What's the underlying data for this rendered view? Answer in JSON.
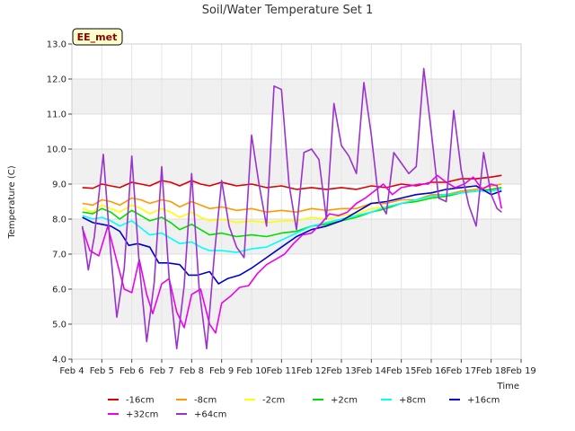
{
  "chart_data": {
    "type": "line",
    "title": "Soil/Water Temperature Set 1",
    "xlabel": "Time",
    "ylabel": "Temperature (C)",
    "site_label": "EE_met",
    "ylim": [
      4.0,
      13.0
    ],
    "yticks": [
      4.0,
      5.0,
      6.0,
      7.0,
      8.0,
      9.0,
      10.0,
      11.0,
      12.0,
      13.0
    ],
    "xlim_days": [
      4,
      19
    ],
    "xticks": [
      {
        "day": 4,
        "label": "Feb 4"
      },
      {
        "day": 5,
        "label": "Feb 5"
      },
      {
        "day": 6,
        "label": "Feb 6"
      },
      {
        "day": 7,
        "label": "Feb 7"
      },
      {
        "day": 8,
        "label": "Feb 8"
      },
      {
        "day": 9,
        "label": "Feb 9"
      },
      {
        "day": 10,
        "label": "Feb 10"
      },
      {
        "day": 11,
        "label": "Feb 11"
      },
      {
        "day": 12,
        "label": "Feb 12"
      },
      {
        "day": 13,
        "label": "Feb 13"
      },
      {
        "day": 14,
        "label": "Feb 14"
      },
      {
        "day": 15,
        "label": "Feb 15"
      },
      {
        "day": 16,
        "label": "Feb 16"
      },
      {
        "day": 17,
        "label": "Feb 17"
      },
      {
        "day": 18,
        "label": "Feb 18"
      },
      {
        "day": 19,
        "label": "Feb 19"
      }
    ],
    "grid": true,
    "legend_position": "bottom",
    "series": [
      {
        "name": "-16cm",
        "color": "#dd0000",
        "x": [
          4.35,
          4.7,
          5.0,
          5.3,
          5.6,
          6.0,
          6.3,
          6.6,
          7.0,
          7.3,
          7.6,
          8.0,
          8.3,
          8.6,
          9.0,
          9.5,
          10.0,
          10.5,
          11.0,
          11.5,
          12.0,
          12.5,
          13.0,
          13.5,
          14.0,
          14.5,
          15.0,
          15.5,
          16.0,
          16.5,
          17.0,
          17.5,
          18.0,
          18.35
        ],
        "y": [
          8.9,
          8.88,
          9.0,
          8.95,
          8.9,
          9.05,
          9.0,
          8.95,
          9.1,
          9.05,
          8.95,
          9.1,
          9.0,
          8.95,
          9.05,
          8.95,
          9.0,
          8.9,
          8.95,
          8.85,
          8.9,
          8.85,
          8.9,
          8.85,
          8.95,
          8.9,
          9.0,
          8.95,
          9.05,
          9.05,
          9.15,
          9.15,
          9.2,
          9.25
        ]
      },
      {
        "name": "-8cm",
        "color": "#ff9900",
        "x": [
          4.35,
          4.7,
          5.0,
          5.3,
          5.6,
          6.0,
          6.3,
          6.6,
          7.0,
          7.3,
          7.6,
          8.0,
          8.3,
          8.6,
          9.0,
          9.5,
          10.0,
          10.5,
          11.0,
          11.5,
          12.0,
          12.5,
          13.0,
          13.5,
          14.0,
          14.5,
          15.0,
          15.5,
          16.0,
          16.5,
          17.0,
          17.5,
          18.0,
          18.35
        ],
        "y": [
          8.45,
          8.4,
          8.55,
          8.5,
          8.4,
          8.6,
          8.55,
          8.45,
          8.55,
          8.5,
          8.35,
          8.5,
          8.4,
          8.3,
          8.35,
          8.25,
          8.3,
          8.2,
          8.25,
          8.2,
          8.3,
          8.25,
          8.3,
          8.3,
          8.45,
          8.45,
          8.55,
          8.55,
          8.7,
          8.7,
          8.8,
          8.85,
          8.95,
          9.0
        ]
      },
      {
        "name": "-2cm",
        "color": "#ffff00",
        "x": [
          4.35,
          4.7,
          5.0,
          5.3,
          5.6,
          6.0,
          6.3,
          6.6,
          7.0,
          7.3,
          7.6,
          8.0,
          8.3,
          8.6,
          9.0,
          9.5,
          10.0,
          10.5,
          11.0,
          11.5,
          12.0,
          12.5,
          13.0,
          13.5,
          14.0,
          14.5,
          15.0,
          15.5,
          16.0,
          16.5,
          17.0,
          17.5,
          18.0,
          18.35
        ],
        "y": [
          8.3,
          8.2,
          8.4,
          8.3,
          8.2,
          8.4,
          8.3,
          8.15,
          8.3,
          8.2,
          8.05,
          8.2,
          8.05,
          7.95,
          8.0,
          7.9,
          7.95,
          7.9,
          7.95,
          7.95,
          8.05,
          8.0,
          8.1,
          8.15,
          8.3,
          8.35,
          8.45,
          8.5,
          8.6,
          8.65,
          8.75,
          8.8,
          8.85,
          8.9
        ]
      },
      {
        "name": "+2cm",
        "color": "#00dd00",
        "x": [
          4.35,
          4.7,
          5.0,
          5.3,
          5.6,
          6.0,
          6.3,
          6.6,
          7.0,
          7.3,
          7.6,
          8.0,
          8.3,
          8.6,
          9.0,
          9.5,
          10.0,
          10.5,
          11.0,
          11.5,
          12.0,
          12.5,
          13.0,
          13.5,
          14.0,
          14.5,
          15.0,
          15.5,
          16.0,
          16.5,
          17.0,
          17.5,
          18.0,
          18.35
        ],
        "y": [
          8.2,
          8.15,
          8.3,
          8.2,
          8.0,
          8.25,
          8.1,
          7.95,
          8.05,
          7.9,
          7.7,
          7.85,
          7.7,
          7.55,
          7.6,
          7.5,
          7.55,
          7.5,
          7.6,
          7.65,
          7.8,
          7.85,
          7.95,
          8.05,
          8.2,
          8.3,
          8.45,
          8.5,
          8.6,
          8.65,
          8.75,
          8.8,
          8.85,
          8.9
        ]
      },
      {
        "name": "+8cm",
        "color": "#00ffff",
        "x": [
          4.35,
          4.7,
          5.0,
          5.3,
          5.6,
          6.0,
          6.3,
          6.6,
          7.0,
          7.3,
          7.6,
          8.0,
          8.3,
          8.6,
          9.0,
          9.5,
          10.0,
          10.5,
          11.0,
          11.5,
          12.0,
          12.5,
          13.0,
          13.5,
          14.0,
          14.5,
          15.0,
          15.5,
          16.0,
          16.5,
          17.0,
          17.5,
          18.0,
          18.35
        ],
        "y": [
          8.1,
          8.0,
          8.05,
          7.95,
          7.8,
          7.95,
          7.75,
          7.55,
          7.6,
          7.45,
          7.3,
          7.35,
          7.2,
          7.1,
          7.1,
          7.05,
          7.15,
          7.2,
          7.4,
          7.6,
          7.8,
          7.9,
          8.0,
          8.1,
          8.2,
          8.35,
          8.45,
          8.55,
          8.65,
          8.7,
          8.75,
          8.8,
          8.8,
          8.85
        ]
      },
      {
        "name": "+16cm",
        "color": "#0000cc",
        "x": [
          4.35,
          4.7,
          5.0,
          5.3,
          5.6,
          5.9,
          6.2,
          6.6,
          6.9,
          7.2,
          7.6,
          7.9,
          8.2,
          8.6,
          8.9,
          9.2,
          9.6,
          10.0,
          10.5,
          11.0,
          11.5,
          12.0,
          12.5,
          13.0,
          13.5,
          14.0,
          14.5,
          15.0,
          15.5,
          16.0,
          16.5,
          17.0,
          17.5,
          18.0,
          18.35
        ],
        "y": [
          8.05,
          7.9,
          7.85,
          7.8,
          7.65,
          7.25,
          7.3,
          7.2,
          6.75,
          6.75,
          6.7,
          6.4,
          6.4,
          6.5,
          6.15,
          6.3,
          6.4,
          6.6,
          6.9,
          7.2,
          7.5,
          7.7,
          7.8,
          7.95,
          8.2,
          8.45,
          8.5,
          8.6,
          8.7,
          8.75,
          8.85,
          8.9,
          8.95,
          8.7,
          8.8
        ]
      },
      {
        "name": "+32cm",
        "color": "#ee00ee",
        "x": [
          4.35,
          4.6,
          4.9,
          5.2,
          5.5,
          5.75,
          6.0,
          6.25,
          6.5,
          6.7,
          7.0,
          7.25,
          7.5,
          7.75,
          8.0,
          8.3,
          8.6,
          8.8,
          9.0,
          9.3,
          9.6,
          9.9,
          10.2,
          10.5,
          10.8,
          11.1,
          11.4,
          11.7,
          12.0,
          12.3,
          12.6,
          12.9,
          13.2,
          13.5,
          13.8,
          14.1,
          14.4,
          14.7,
          15.0,
          15.3,
          15.6,
          15.9,
          16.2,
          16.5,
          16.8,
          17.1,
          17.4,
          17.7,
          18.0,
          18.2,
          18.35
        ],
        "y": [
          7.75,
          7.1,
          6.95,
          7.8,
          6.8,
          6.0,
          5.9,
          6.85,
          5.85,
          5.3,
          6.15,
          6.3,
          5.35,
          4.9,
          5.85,
          6.0,
          5.0,
          4.75,
          5.6,
          5.8,
          6.05,
          6.1,
          6.45,
          6.7,
          6.85,
          7.0,
          7.3,
          7.55,
          7.6,
          7.85,
          8.15,
          8.1,
          8.2,
          8.45,
          8.6,
          8.8,
          9.0,
          8.7,
          8.9,
          8.95,
          9.0,
          9.0,
          9.25,
          9.05,
          8.9,
          9.0,
          9.2,
          8.85,
          9.0,
          8.95,
          8.3
        ]
      },
      {
        "name": "+64cm",
        "color": "#9933cc",
        "x": [
          4.35,
          4.55,
          4.75,
          5.05,
          5.3,
          5.5,
          5.75,
          6.0,
          6.25,
          6.5,
          6.75,
          7.0,
          7.25,
          7.5,
          7.75,
          8.0,
          8.25,
          8.5,
          8.75,
          9.0,
          9.25,
          9.5,
          9.75,
          10.0,
          10.25,
          10.5,
          10.75,
          11.0,
          11.25,
          11.5,
          11.75,
          12.0,
          12.25,
          12.5,
          12.75,
          13.0,
          13.25,
          13.5,
          13.75,
          14.0,
          14.25,
          14.5,
          14.75,
          15.0,
          15.25,
          15.5,
          15.75,
          16.0,
          16.25,
          16.5,
          16.75,
          17.0,
          17.25,
          17.5,
          17.75,
          18.0,
          18.2,
          18.35
        ],
        "y": [
          7.8,
          6.55,
          7.5,
          9.85,
          7.0,
          5.2,
          6.6,
          9.8,
          6.7,
          4.5,
          6.2,
          9.5,
          6.3,
          4.3,
          6.1,
          9.3,
          6.0,
          4.3,
          6.9,
          9.1,
          7.8,
          7.2,
          6.9,
          10.4,
          9.0,
          7.8,
          11.8,
          11.7,
          9.0,
          7.7,
          9.9,
          10.0,
          9.7,
          8.0,
          11.3,
          10.1,
          9.8,
          9.3,
          11.9,
          10.4,
          8.5,
          8.15,
          9.9,
          9.6,
          9.3,
          9.5,
          12.3,
          10.5,
          8.6,
          8.5,
          11.1,
          9.4,
          8.4,
          7.8,
          9.9,
          8.7,
          8.3,
          8.2
        ]
      }
    ]
  }
}
